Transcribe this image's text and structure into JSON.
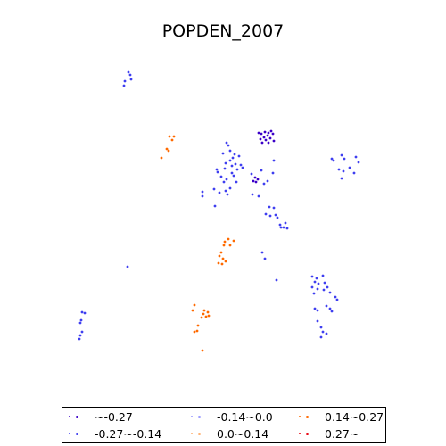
{
  "title": "POPDEN_2007",
  "legend": {
    "items": [
      {
        "label": "~-0.27",
        "color": "#3b00c8"
      },
      {
        "label": "-0.27~-0.14",
        "color": "#3f3ff0"
      },
      {
        "label": "-0.14~0.0",
        "color": "#9999ff"
      },
      {
        "label": "0.0~0.14",
        "color": "#ffb070"
      },
      {
        "label": "0.14~0.27",
        "color": "#ff6a00"
      },
      {
        "label": "0.27~",
        "color": "#e8000e"
      }
    ]
  },
  "chart_data": {
    "type": "scatter",
    "title": "POPDEN_2007",
    "series": [
      {
        "name": "~-0.27",
        "color": "#3b00c8",
        "points": [
          [
            290,
            149
          ],
          [
            293,
            150
          ],
          [
            297,
            148
          ],
          [
            301,
            149
          ],
          [
            304,
            147
          ],
          [
            306,
            150
          ],
          [
            300,
            152
          ],
          [
            296,
            154
          ],
          [
            292,
            156
          ],
          [
            298,
            157
          ],
          [
            303,
            155
          ],
          [
            307,
            158
          ],
          [
            294,
            160
          ],
          [
            301,
            160
          ],
          [
            286,
            199
          ],
          [
            289,
            201
          ],
          [
            284,
            203
          ],
          [
            287,
            204
          ]
        ]
      },
      {
        "name": "-0.27~-0.14",
        "color": "#3f3ff0",
        "points": [
          [
            144,
            81
          ],
          [
            146,
            84
          ],
          [
            140,
            91
          ],
          [
            147,
            89
          ],
          [
            139,
            96
          ],
          [
            254,
            160
          ],
          [
            256,
            163
          ],
          [
            258,
            169
          ],
          [
            250,
            172
          ],
          [
            263,
            173
          ],
          [
            268,
            175
          ],
          [
            261,
            177
          ],
          [
            258,
            180
          ],
          [
            253,
            183
          ],
          [
            264,
            184
          ],
          [
            270,
            185
          ],
          [
            272,
            188
          ],
          [
            266,
            190
          ],
          [
            243,
            190
          ],
          [
            244,
            193
          ],
          [
            260,
            194
          ],
          [
            262,
            197
          ],
          [
            248,
            198
          ],
          [
            254,
            201
          ],
          [
            251,
            204
          ],
          [
            265,
            204
          ],
          [
            258,
            211
          ],
          [
            253,
            214
          ],
          [
            246,
            216
          ],
          [
            227,
            215
          ],
          [
            227,
            220
          ],
          [
            255,
            218
          ],
          [
            240,
            212
          ],
          [
            241,
            231
          ],
          [
            252,
            189
          ],
          [
            260,
            186
          ],
          [
            307,
            180
          ],
          [
            293,
            191
          ],
          [
            282,
            195
          ],
          [
            306,
            194
          ],
          [
            296,
            206
          ],
          [
            300,
            203
          ],
          [
            283,
            218
          ],
          [
            290,
            220
          ],
          [
            302,
            232
          ],
          [
            307,
            233
          ],
          [
            298,
            240
          ],
          [
            303,
            242
          ],
          [
            309,
            241
          ],
          [
            311,
            244
          ],
          [
            314,
            252
          ],
          [
            315,
            255
          ],
          [
            320,
            250
          ],
          [
            318,
            255
          ],
          [
            322,
            256
          ],
          [
            294,
            283
          ],
          [
            297,
            290
          ],
          [
            310,
            314
          ],
          [
            372,
            178
          ],
          [
            374,
            180
          ],
          [
            383,
            174
          ],
          [
            386,
            178
          ],
          [
            399,
            176
          ],
          [
            402,
            182
          ],
          [
            380,
            190
          ],
          [
            385,
            192
          ],
          [
            392,
            188
          ],
          [
            397,
            194
          ],
          [
            383,
            200
          ],
          [
            143,
            299
          ],
          [
            350,
            310
          ],
          [
            355,
            312
          ],
          [
            362,
            309
          ],
          [
            353,
            316
          ],
          [
            357,
            318
          ],
          [
            364,
            317
          ],
          [
            350,
            322
          ],
          [
            356,
            324
          ],
          [
            363,
            325
          ],
          [
            367,
            322
          ],
          [
            370,
            328
          ],
          [
            376,
            333
          ],
          [
            378,
            336
          ],
          [
            352,
            329
          ],
          [
            353,
            346
          ],
          [
            356,
            348
          ],
          [
            366,
            343
          ],
          [
            370,
            346
          ],
          [
            372,
            349
          ],
          [
            356,
            360
          ],
          [
            360,
            367
          ],
          [
            362,
            372
          ],
          [
            360,
            378
          ],
          [
            366,
            374
          ],
          [
            92,
            350
          ],
          [
            95,
            351
          ],
          [
            91,
            359
          ],
          [
            90,
            362
          ],
          [
            92,
            372
          ],
          [
            90,
            376
          ],
          [
            89,
            380
          ]
        ]
      },
      {
        "name": "0.14~0.27",
        "color": "#ff6a00",
        "points": [
          [
            190,
            153
          ],
          [
            195,
            153
          ],
          [
            193,
            157
          ],
          [
            187,
            167
          ],
          [
            189,
            169
          ],
          [
            181,
            177
          ],
          [
            256,
            268
          ],
          [
            252,
            271
          ],
          [
            251,
            275
          ],
          [
            248,
            283
          ],
          [
            246,
            287
          ],
          [
            250,
            290
          ],
          [
            253,
            293
          ],
          [
            245,
            295
          ],
          [
            258,
            275
          ],
          [
            262,
            270
          ],
          [
            249,
            296
          ],
          [
            218,
            342
          ],
          [
            216,
            348
          ],
          [
            229,
            348
          ],
          [
            233,
            350
          ],
          [
            231,
            355
          ],
          [
            226,
            356
          ],
          [
            228,
            352
          ],
          [
            234,
            354
          ],
          [
            222,
            365
          ],
          [
            221,
            371
          ],
          [
            218,
            372
          ],
          [
            227,
            393
          ]
        ]
      }
    ]
  }
}
